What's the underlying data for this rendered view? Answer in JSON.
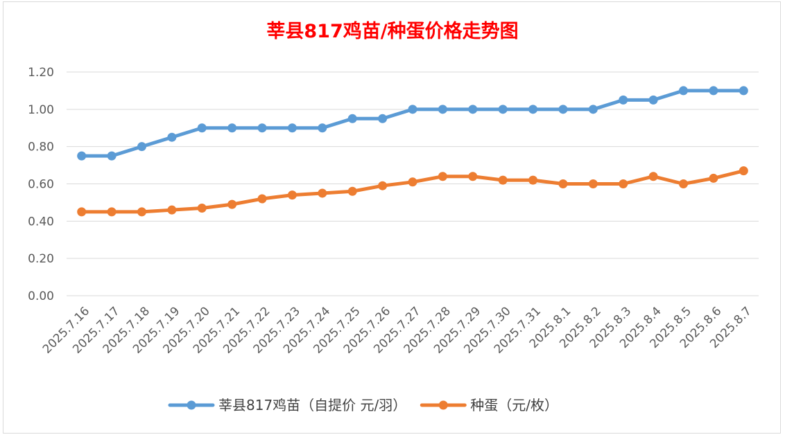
{
  "chart_data": {
    "type": "line",
    "title": "莘县817鸡苗/种蛋价格走势图",
    "categories": [
      "2025.7.16",
      "2025.7.17",
      "2025.7.18",
      "2025.7.19",
      "2025.7.20",
      "2025.7.21",
      "2025.7.22",
      "2025.7.23",
      "2025.7.24",
      "2025.7.25",
      "2025.7.26",
      "2025.7.27",
      "2025.7.28",
      "2025.7.29",
      "2025.7.30",
      "2025.7.31",
      "2025.8.1",
      "2025.8.2",
      "2025.8.3",
      "2025.8.4",
      "2025.8.5",
      "2025.8.6",
      "2025.8.7"
    ],
    "y_ticks": [
      "0.00",
      "0.20",
      "0.40",
      "0.60",
      "0.80",
      "1.00",
      "1.20"
    ],
    "ylim": [
      0,
      1.2
    ],
    "grid": true,
    "legend_position": "bottom",
    "series": [
      {
        "name": "莘县817鸡苗（自提价 元/羽）",
        "color": "#5b9bd5",
        "values": [
          0.75,
          0.75,
          0.8,
          0.85,
          0.9,
          0.9,
          0.9,
          0.9,
          0.9,
          0.95,
          0.95,
          1.0,
          1.0,
          1.0,
          1.0,
          1.0,
          1.0,
          1.0,
          1.05,
          1.05,
          1.1,
          1.1,
          1.1
        ]
      },
      {
        "name": "种蛋（元/枚）",
        "color": "#ed7d31",
        "values": [
          0.45,
          0.45,
          0.45,
          0.46,
          0.47,
          0.49,
          0.52,
          0.54,
          0.55,
          0.56,
          0.59,
          0.61,
          0.64,
          0.64,
          0.62,
          0.62,
          0.6,
          0.6,
          0.6,
          0.64,
          0.6,
          0.63,
          0.67
        ]
      }
    ]
  }
}
